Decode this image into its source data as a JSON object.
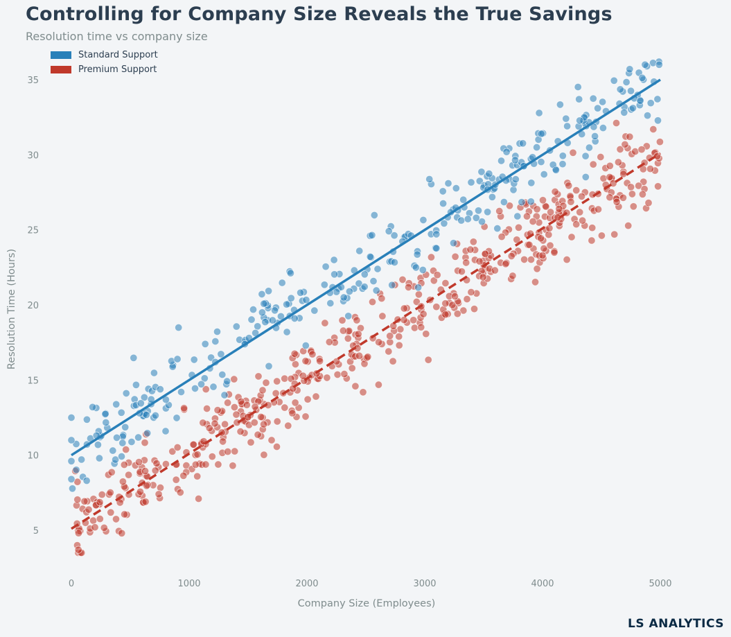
{
  "chart_data": {
    "type": "scatter",
    "title": "Controlling for Company Size Reveals the True Savings",
    "subtitle": "Resolution time vs company size",
    "xlabel": "Company Size (Employees)",
    "ylabel": "Resolution Time (Hours)",
    "xlim": [
      -100,
      5400
    ],
    "ylim": [
      2,
      36.8
    ],
    "xticks": [
      0,
      1000,
      2000,
      3000,
      4000,
      5000
    ],
    "yticks": [
      5,
      10,
      15,
      20,
      25,
      30,
      35
    ],
    "grid": false,
    "legend_position": "top-left",
    "series": [
      {
        "name": "Standard Support",
        "color": "#2980b9",
        "trend": {
          "slope": 0.005,
          "intercept": 10.0,
          "x_range": [
            0,
            5000
          ],
          "style": "solid"
        },
        "x_range": [
          0,
          5000
        ],
        "noise_sd": 1.25,
        "point_count": 330,
        "points": [
          [
            0,
            12.5
          ],
          [
            0,
            11.0
          ],
          [
            0,
            8.4
          ],
          [
            0,
            9.6
          ],
          [
            130,
            8.3
          ],
          [
            4740,
            35.7
          ],
          [
            4870,
            36.0
          ],
          [
            4990,
            36.0
          ],
          [
            4310,
            33.7
          ],
          [
            4830,
            33.6
          ],
          [
            180,
            13.2
          ],
          [
            1620,
            19.5
          ],
          [
            3200,
            28.1
          ],
          [
            3650,
            29.6
          ],
          [
            3990,
            31.4
          ],
          [
            800,
            11.6
          ],
          [
            1830,
            18.2
          ],
          [
            1990,
            17.3
          ],
          [
            1300,
            14.0
          ],
          [
            2600,
            22.4
          ]
        ]
      },
      {
        "name": "Premium Support",
        "color": "#c0392b",
        "trend": {
          "slope": 0.005,
          "intercept": 5.1,
          "x_range": [
            0,
            5000
          ],
          "style": "dashed"
        },
        "x_range": [
          30,
          5000
        ],
        "noise_sd": 1.35,
        "point_count": 520,
        "points": [
          [
            50,
            4.0
          ],
          [
            60,
            3.7
          ],
          [
            120,
            5.5
          ],
          [
            200,
            5.2
          ],
          [
            630,
            6.9
          ],
          [
            1080,
            7.1
          ],
          [
            4610,
            24.7
          ],
          [
            4900,
            26.8
          ],
          [
            4980,
            27.9
          ],
          [
            4940,
            31.7
          ],
          [
            4740,
            31.2
          ],
          [
            1700,
            11.0
          ],
          [
            4000,
            23.3
          ],
          [
            3860,
            26.7
          ],
          [
            1370,
            9.3
          ]
        ]
      }
    ]
  },
  "watermark": "LS ANALYTICS"
}
